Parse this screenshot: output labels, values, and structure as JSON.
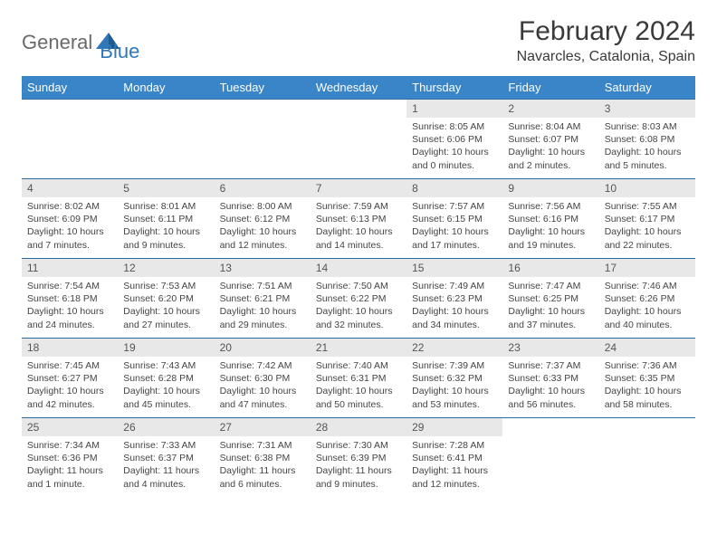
{
  "logo": {
    "part1": "General",
    "part2": "Blue"
  },
  "title": "February 2024",
  "location": "Navarcles, Catalonia, Spain",
  "colors": {
    "header_bg": "#3a85c7",
    "header_text": "#ffffff",
    "daynum_bg": "#e8e8e8",
    "row_border": "#2f6aa0",
    "logo_gray": "#6a6a6a",
    "logo_blue": "#2f77b8"
  },
  "weekdays": [
    "Sunday",
    "Monday",
    "Tuesday",
    "Wednesday",
    "Thursday",
    "Friday",
    "Saturday"
  ],
  "weeks": [
    [
      {
        "n": "",
        "sr": "",
        "ss": "",
        "dl": ""
      },
      {
        "n": "",
        "sr": "",
        "ss": "",
        "dl": ""
      },
      {
        "n": "",
        "sr": "",
        "ss": "",
        "dl": ""
      },
      {
        "n": "",
        "sr": "",
        "ss": "",
        "dl": ""
      },
      {
        "n": "1",
        "sr": "Sunrise: 8:05 AM",
        "ss": "Sunset: 6:06 PM",
        "dl": "Daylight: 10 hours and 0 minutes."
      },
      {
        "n": "2",
        "sr": "Sunrise: 8:04 AM",
        "ss": "Sunset: 6:07 PM",
        "dl": "Daylight: 10 hours and 2 minutes."
      },
      {
        "n": "3",
        "sr": "Sunrise: 8:03 AM",
        "ss": "Sunset: 6:08 PM",
        "dl": "Daylight: 10 hours and 5 minutes."
      }
    ],
    [
      {
        "n": "4",
        "sr": "Sunrise: 8:02 AM",
        "ss": "Sunset: 6:09 PM",
        "dl": "Daylight: 10 hours and 7 minutes."
      },
      {
        "n": "5",
        "sr": "Sunrise: 8:01 AM",
        "ss": "Sunset: 6:11 PM",
        "dl": "Daylight: 10 hours and 9 minutes."
      },
      {
        "n": "6",
        "sr": "Sunrise: 8:00 AM",
        "ss": "Sunset: 6:12 PM",
        "dl": "Daylight: 10 hours and 12 minutes."
      },
      {
        "n": "7",
        "sr": "Sunrise: 7:59 AM",
        "ss": "Sunset: 6:13 PM",
        "dl": "Daylight: 10 hours and 14 minutes."
      },
      {
        "n": "8",
        "sr": "Sunrise: 7:57 AM",
        "ss": "Sunset: 6:15 PM",
        "dl": "Daylight: 10 hours and 17 minutes."
      },
      {
        "n": "9",
        "sr": "Sunrise: 7:56 AM",
        "ss": "Sunset: 6:16 PM",
        "dl": "Daylight: 10 hours and 19 minutes."
      },
      {
        "n": "10",
        "sr": "Sunrise: 7:55 AM",
        "ss": "Sunset: 6:17 PM",
        "dl": "Daylight: 10 hours and 22 minutes."
      }
    ],
    [
      {
        "n": "11",
        "sr": "Sunrise: 7:54 AM",
        "ss": "Sunset: 6:18 PM",
        "dl": "Daylight: 10 hours and 24 minutes."
      },
      {
        "n": "12",
        "sr": "Sunrise: 7:53 AM",
        "ss": "Sunset: 6:20 PM",
        "dl": "Daylight: 10 hours and 27 minutes."
      },
      {
        "n": "13",
        "sr": "Sunrise: 7:51 AM",
        "ss": "Sunset: 6:21 PM",
        "dl": "Daylight: 10 hours and 29 minutes."
      },
      {
        "n": "14",
        "sr": "Sunrise: 7:50 AM",
        "ss": "Sunset: 6:22 PM",
        "dl": "Daylight: 10 hours and 32 minutes."
      },
      {
        "n": "15",
        "sr": "Sunrise: 7:49 AM",
        "ss": "Sunset: 6:23 PM",
        "dl": "Daylight: 10 hours and 34 minutes."
      },
      {
        "n": "16",
        "sr": "Sunrise: 7:47 AM",
        "ss": "Sunset: 6:25 PM",
        "dl": "Daylight: 10 hours and 37 minutes."
      },
      {
        "n": "17",
        "sr": "Sunrise: 7:46 AM",
        "ss": "Sunset: 6:26 PM",
        "dl": "Daylight: 10 hours and 40 minutes."
      }
    ],
    [
      {
        "n": "18",
        "sr": "Sunrise: 7:45 AM",
        "ss": "Sunset: 6:27 PM",
        "dl": "Daylight: 10 hours and 42 minutes."
      },
      {
        "n": "19",
        "sr": "Sunrise: 7:43 AM",
        "ss": "Sunset: 6:28 PM",
        "dl": "Daylight: 10 hours and 45 minutes."
      },
      {
        "n": "20",
        "sr": "Sunrise: 7:42 AM",
        "ss": "Sunset: 6:30 PM",
        "dl": "Daylight: 10 hours and 47 minutes."
      },
      {
        "n": "21",
        "sr": "Sunrise: 7:40 AM",
        "ss": "Sunset: 6:31 PM",
        "dl": "Daylight: 10 hours and 50 minutes."
      },
      {
        "n": "22",
        "sr": "Sunrise: 7:39 AM",
        "ss": "Sunset: 6:32 PM",
        "dl": "Daylight: 10 hours and 53 minutes."
      },
      {
        "n": "23",
        "sr": "Sunrise: 7:37 AM",
        "ss": "Sunset: 6:33 PM",
        "dl": "Daylight: 10 hours and 56 minutes."
      },
      {
        "n": "24",
        "sr": "Sunrise: 7:36 AM",
        "ss": "Sunset: 6:35 PM",
        "dl": "Daylight: 10 hours and 58 minutes."
      }
    ],
    [
      {
        "n": "25",
        "sr": "Sunrise: 7:34 AM",
        "ss": "Sunset: 6:36 PM",
        "dl": "Daylight: 11 hours and 1 minute."
      },
      {
        "n": "26",
        "sr": "Sunrise: 7:33 AM",
        "ss": "Sunset: 6:37 PM",
        "dl": "Daylight: 11 hours and 4 minutes."
      },
      {
        "n": "27",
        "sr": "Sunrise: 7:31 AM",
        "ss": "Sunset: 6:38 PM",
        "dl": "Daylight: 11 hours and 6 minutes."
      },
      {
        "n": "28",
        "sr": "Sunrise: 7:30 AM",
        "ss": "Sunset: 6:39 PM",
        "dl": "Daylight: 11 hours and 9 minutes."
      },
      {
        "n": "29",
        "sr": "Sunrise: 7:28 AM",
        "ss": "Sunset: 6:41 PM",
        "dl": "Daylight: 11 hours and 12 minutes."
      },
      {
        "n": "",
        "sr": "",
        "ss": "",
        "dl": ""
      },
      {
        "n": "",
        "sr": "",
        "ss": "",
        "dl": ""
      }
    ]
  ]
}
